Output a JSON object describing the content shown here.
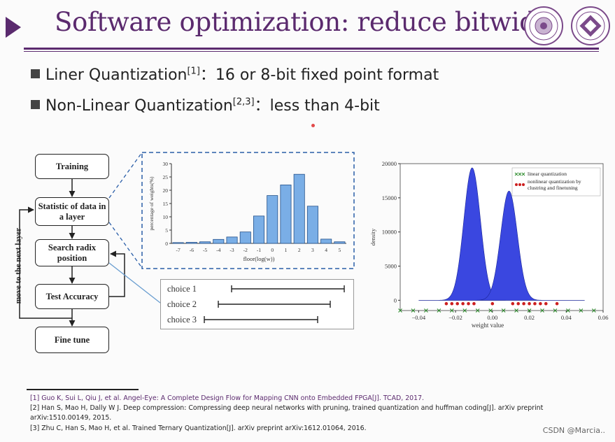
{
  "title": "Software optimization: reduce bitwidth",
  "bullets": [
    {
      "main": "Liner Quantization",
      "sup": "[1]",
      "tail": "：16 or 8-bit fixed point format"
    },
    {
      "main": "Non-Linear Quantization",
      "sup": "[2,3]",
      "tail": "：less than 4-bit"
    }
  ],
  "flow": {
    "steps": [
      "Training",
      "Statistic of data in a layer",
      "Search radix position",
      "Test Accuracy",
      "Fine tune"
    ],
    "loop_label": "move to the next layer",
    "choices": [
      "choice 1",
      "choice 2",
      "choice 3"
    ]
  },
  "references": [
    "[1] Guo K, Sui L, Qiu J, et al. Angel-Eye: A Complete Design Flow for Mapping CNN onto Embedded FPGA[J]. TCAD, 2017.",
    "[2] Han S, Mao H, Dally W J. Deep compression: Compressing deep neural networks with pruning, trained quantization and huffman coding[J]. arXiv preprint",
    "arXiv:1510.00149, 2015.",
    "[3] Zhu C, Han S, Mao H, et al. Trained Ternary Quantization[J]. arXiv preprint arXiv:1612.01064, 2016."
  ],
  "watermark": "CSDN @Marcia..",
  "colors": {
    "accent": "#5b2a6e",
    "bar": "#7aaee6",
    "density": "#3a47e0",
    "nonlinear": "#cc1f1f",
    "linear": "#2a8a2a"
  },
  "chart_data": [
    {
      "type": "bar",
      "categories": [
        "-7",
        "-6",
        "-5",
        "-4",
        "-3",
        "-2",
        "-1",
        "0",
        "1",
        "2",
        "3",
        "4",
        "5"
      ],
      "values": [
        0.3,
        0.4,
        0.6,
        1.5,
        2.4,
        4.3,
        10.3,
        18,
        22,
        26,
        14,
        1.6,
        0.6
      ],
      "xlabel": "floor(log(w))",
      "ylabel": "percentage of weights(%)",
      "ylim": [
        0,
        30
      ],
      "yticks": [
        "0",
        "5",
        "10",
        "15",
        "20",
        "25",
        "30"
      ]
    },
    {
      "type": "area",
      "xlabel": "weight value",
      "ylabel": "density",
      "xlim": [
        -0.05,
        0.06
      ],
      "ylim": [
        -1500,
        20000
      ],
      "xticks": [
        "−0.04",
        "−0.02",
        "0.00",
        "0.02",
        "0.04",
        "0.06"
      ],
      "yticks": [
        "0",
        "5000",
        "10000",
        "15000",
        "20000"
      ],
      "series": [
        {
          "name": "linear quantization",
          "marker": "x",
          "y": -1500,
          "x": [
            -0.05,
            -0.043,
            -0.036,
            -0.029,
            -0.022,
            -0.015,
            -0.008,
            -0.001,
            0.006,
            0.013,
            0.02,
            0.027,
            0.034,
            0.041,
            0.048,
            0.055
          ]
        },
        {
          "name": "nonlinear quantization by clustring and finetuning",
          "marker": "o",
          "y": -500,
          "x": [
            -0.025,
            -0.022,
            -0.019,
            -0.016,
            -0.013,
            -0.01,
            0.0,
            0.011,
            0.014,
            0.017,
            0.02,
            0.023,
            0.026,
            0.029,
            0.035
          ]
        }
      ],
      "peaks": [
        {
          "center": -0.011,
          "height": 19400
        },
        {
          "center": 0.009,
          "height": 16000
        }
      ],
      "legend": "top-right"
    }
  ]
}
